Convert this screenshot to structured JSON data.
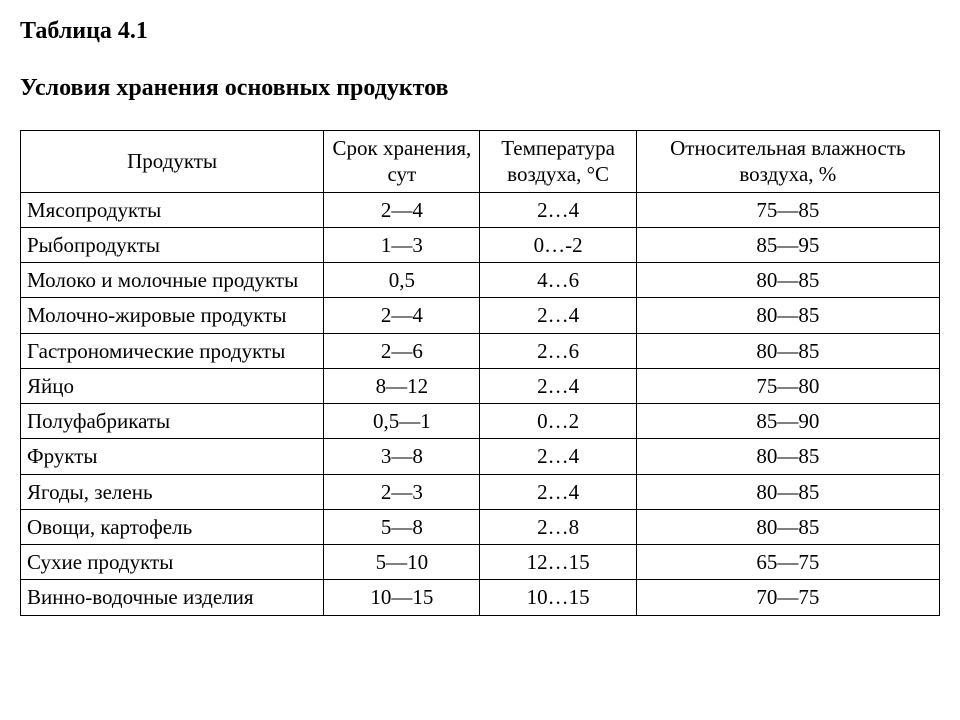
{
  "heading": {
    "label": "Таблица 4.1",
    "title": "Условия хранения основных продуктов"
  },
  "table": {
    "type": "table",
    "background_color": "#ffffff",
    "border_color": "#000000",
    "text_color": "#000000",
    "font_family": "Times New Roman",
    "header_fontsize": 21,
    "cell_fontsize": 21,
    "columns": [
      {
        "label": "Продукты",
        "align": "left",
        "width_pct": 33
      },
      {
        "label": "Срок хранения, сут",
        "align": "center",
        "width_pct": 17
      },
      {
        "label": "Температура воздуха, °С",
        "align": "center",
        "width_pct": 17
      },
      {
        "label": "Относительная влажность воздуха, %",
        "align": "center",
        "width_pct": 33
      }
    ],
    "rows": [
      {
        "product": "Мясопродукты",
        "shelf_life": "2—4",
        "temp": "2…4",
        "humidity": "75—85"
      },
      {
        "product": "Рыбопродукты",
        "shelf_life": "1—3",
        "temp": "0…-2",
        "humidity": "85—95"
      },
      {
        "product": "Молоко и молочные продукты",
        "shelf_life": "0,5",
        "temp": "4…6",
        "humidity": "80—85"
      },
      {
        "product": "Молочно-жировые продукты",
        "shelf_life": "2—4",
        "temp": "2…4",
        "humidity": "80—85"
      },
      {
        "product": "Гастрономические продукты",
        "shelf_life": "2—6",
        "temp": "2…6",
        "humidity": "80—85"
      },
      {
        "product": "Яйцо",
        "shelf_life": "8—12",
        "temp": "2…4",
        "humidity": "75—80"
      },
      {
        "product": "Полуфабрикаты",
        "shelf_life": "0,5—1",
        "temp": "0…2",
        "humidity": "85—90"
      },
      {
        "product": "Фрукты",
        "shelf_life": "3—8",
        "temp": "2…4",
        "humidity": "80—85"
      },
      {
        "product": "Ягоды, зелень",
        "shelf_life": "2—3",
        "temp": "2…4",
        "humidity": "80—85"
      },
      {
        "product": "Овощи, картофель",
        "shelf_life": "5—8",
        "temp": "2…8",
        "humidity": "80—85"
      },
      {
        "product": "Сухие продукты",
        "shelf_life": "5—10",
        "temp": "12…15",
        "humidity": "65—75"
      },
      {
        "product": "Винно-водочные изделия",
        "shelf_life": "10—15",
        "temp": "10…15",
        "humidity": "70—75"
      }
    ]
  }
}
